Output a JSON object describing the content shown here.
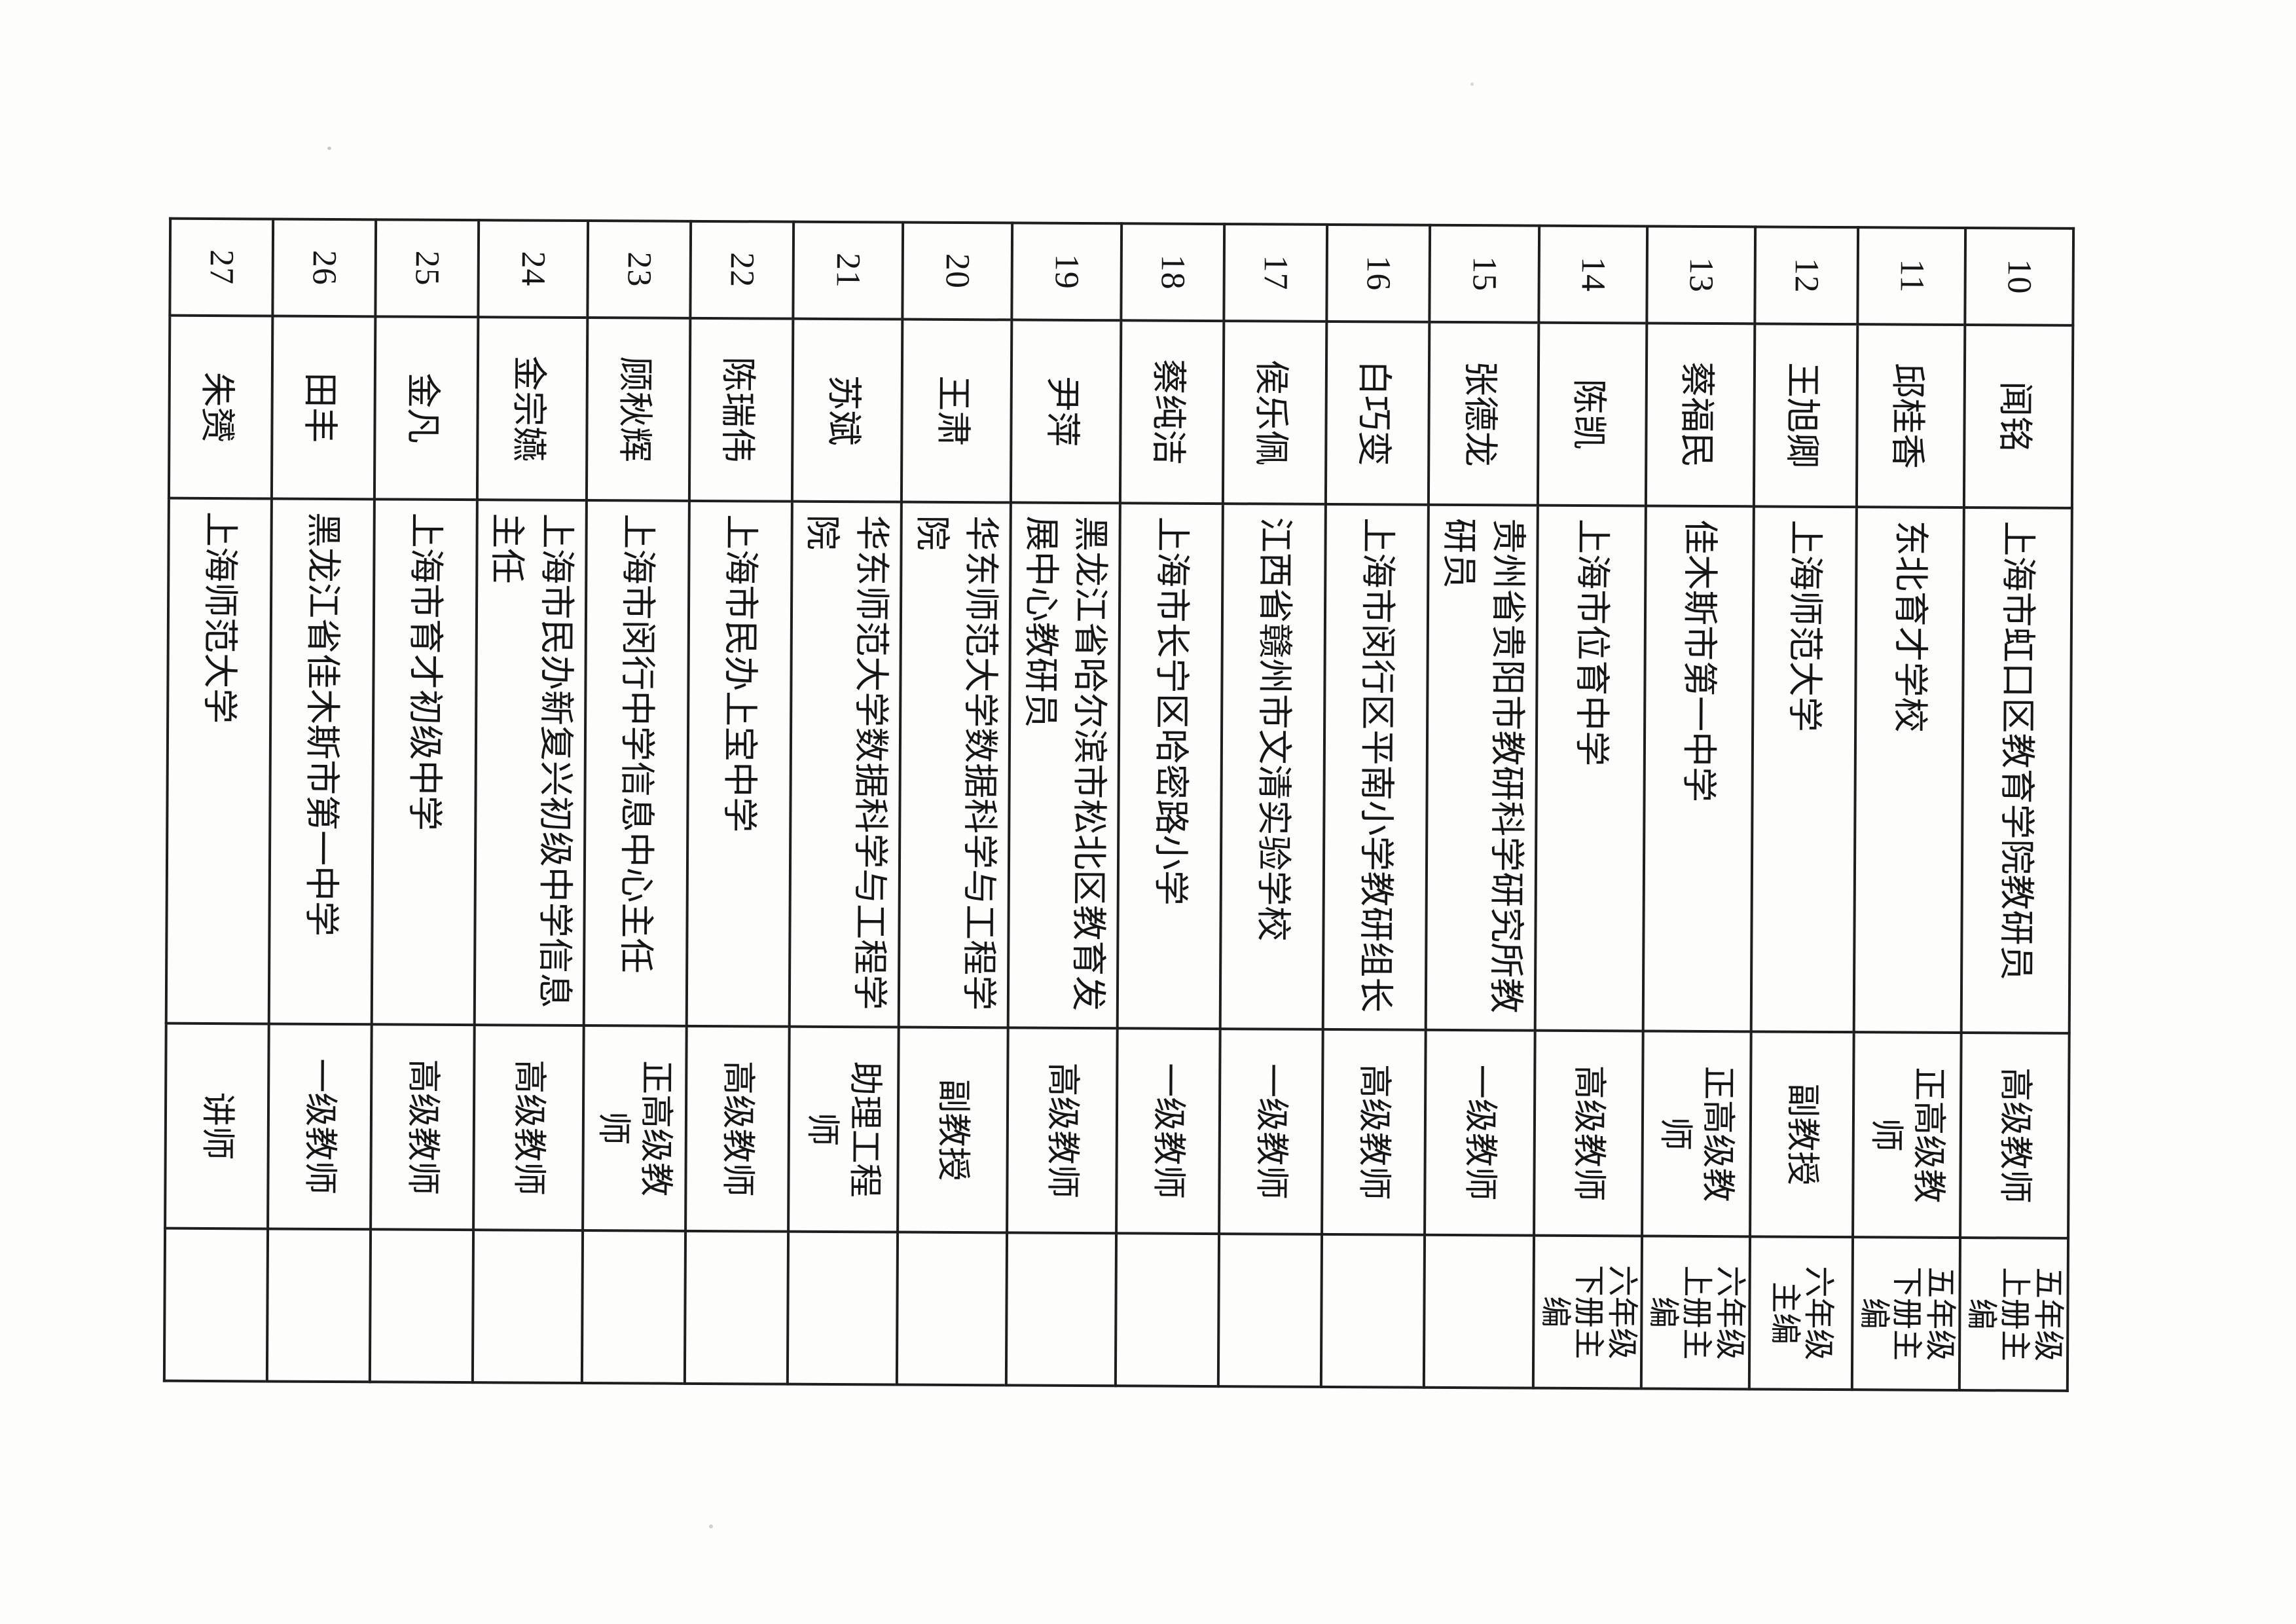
{
  "document": {
    "kind": "scanned-roster-table",
    "paper_color": "#fdfdfc",
    "ink_color": "#1e1e1e",
    "rotation": "90deg-clockwise"
  },
  "rows": [
    {
      "no": "10",
      "name": "闻铭",
      "org": "上海市虹口区教育学院教研员",
      "title": "高级教师",
      "remark": "五年级上册主编"
    },
    {
      "no": "11",
      "name": "邱桂香",
      "org": "东北育才学校",
      "title": "正高级教师",
      "remark": "五年级下册主编"
    },
    {
      "no": "12",
      "name": "王旭卿",
      "org": "上海师范大学",
      "title": "副教授",
      "remark": "六年级主编"
    },
    {
      "no": "13",
      "name": "蔡福民",
      "org": "佳木斯市第一中学",
      "title": "正高级教师",
      "remark": "六年级上册主编"
    },
    {
      "no": "14",
      "name": "陈凯",
      "org": "上海市位育中学",
      "title": "高级教师",
      "remark": "六年级下册主编"
    },
    {
      "no": "15",
      "name": "张德龙",
      "org": "贵州省贵阳市教研科学研究所教研员",
      "title": "一级教师",
      "remark": ""
    },
    {
      "no": "16",
      "name": "白巧变",
      "org": "上海市闵行区平南小学教研组长",
      "title": "高级教师",
      "remark": ""
    },
    {
      "no": "17",
      "name": "侯乐佩",
      "org": "江西省赣州市文清实验学校",
      "title": "一级教师",
      "remark": ""
    },
    {
      "no": "18",
      "name": "蔡纯洁",
      "org": "上海市长宁区哈密路小学",
      "title": "一级教师",
      "remark": ""
    },
    {
      "no": "19",
      "name": "尹萍",
      "org": "黑龙江省哈尔滨市松北区教育发展中心教研员",
      "title": "高级教师",
      "remark": ""
    },
    {
      "no": "20",
      "name": "王肃",
      "org": "华东师范大学数据科学与工程学院",
      "title": "副教授",
      "remark": ""
    },
    {
      "no": "21",
      "name": "苏斌",
      "org": "华东师范大学数据科学与工程学院",
      "title": "助理工程师",
      "remark": ""
    },
    {
      "no": "22",
      "name": "陈瑞伟",
      "org": "上海市民办上宝中学",
      "title": "高级教师",
      "remark": ""
    },
    {
      "no": "23",
      "name": "顾秋辉",
      "org": "上海市闵行中学信息中心主任",
      "title": "正高级教师",
      "remark": ""
    },
    {
      "no": "24",
      "name": "金宗嬿",
      "org": "上海市民办新复兴初级中学信息主任",
      "title": "高级教师",
      "remark": ""
    },
    {
      "no": "25",
      "name": "金凡",
      "org": "上海市育才初级中学",
      "title": "高级教师",
      "remark": ""
    },
    {
      "no": "26",
      "name": "田丰",
      "org": "黑龙江省佳木斯市第一中学",
      "title": "一级教师",
      "remark": ""
    },
    {
      "no": "27",
      "name": "朱赟",
      "org": "上海师范大学",
      "title": "讲师",
      "remark": ""
    }
  ]
}
